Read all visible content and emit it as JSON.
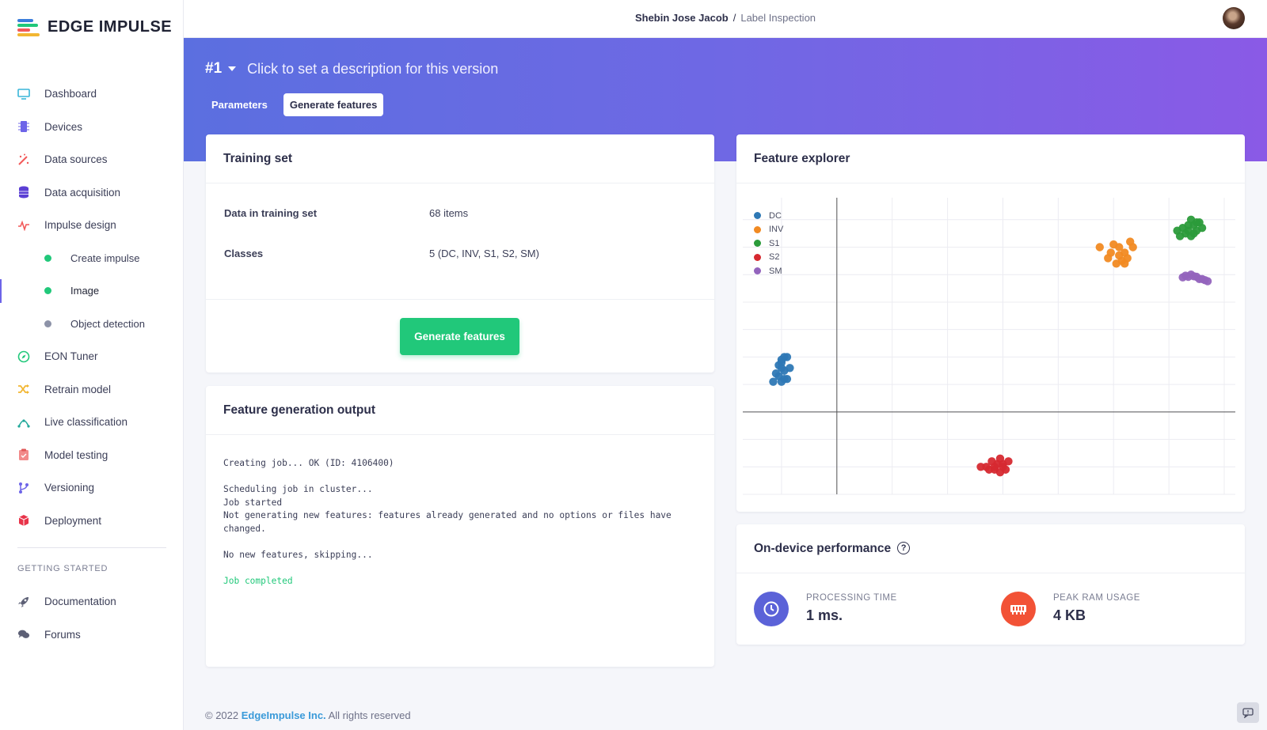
{
  "app": {
    "name": "EDGE IMPULSE"
  },
  "breadcrumb": {
    "user": "Shebin Jose Jacob",
    "separator": "/",
    "project": "Label Inspection"
  },
  "sidebar": {
    "items": [
      {
        "label": "Dashboard",
        "icon": "monitor-icon",
        "color": "#39b6d9"
      },
      {
        "label": "Devices",
        "icon": "chip-icon",
        "color": "#6d64e8"
      },
      {
        "label": "Data sources",
        "icon": "wand-icon",
        "color": "#f25a5a"
      },
      {
        "label": "Data acquisition",
        "icon": "database-icon",
        "color": "#5b3fd4"
      },
      {
        "label": "Impulse design",
        "icon": "pulse-icon",
        "color": "#f25a5a"
      }
    ],
    "sub_items": [
      {
        "label": "Create impulse",
        "dot": "#21c87a"
      },
      {
        "label": "Image",
        "dot": "#21c87a"
      },
      {
        "label": "Object detection",
        "dot": "#8d93a8"
      }
    ],
    "items2": [
      {
        "label": "EON Tuner",
        "icon": "compass-icon",
        "color": "#21c87a"
      },
      {
        "label": "Retrain model",
        "icon": "shuffle-icon",
        "color": "#f2b632"
      },
      {
        "label": "Live classification",
        "icon": "curve-icon",
        "color": "#21a89a"
      },
      {
        "label": "Model testing",
        "icon": "clipboard-icon",
        "color": "#f28a8a"
      },
      {
        "label": "Versioning",
        "icon": "branch-icon",
        "color": "#6d64e8"
      },
      {
        "label": "Deployment",
        "icon": "box-icon",
        "color": "#e8344a"
      }
    ],
    "section_label": "GETTING STARTED",
    "help_items": [
      {
        "label": "Documentation",
        "icon": "rocket-icon"
      },
      {
        "label": "Forums",
        "icon": "chat-icon"
      }
    ]
  },
  "version": {
    "number": "#1",
    "description": "Click to set a description for this version"
  },
  "tabs": [
    {
      "label": "Parameters"
    },
    {
      "label": "Generate features"
    }
  ],
  "training_set": {
    "title": "Training set",
    "rows": [
      {
        "label": "Data in training set",
        "value": "68 items"
      },
      {
        "label": "Classes",
        "value": "5 (DC, INV, S1, S2, SM)"
      }
    ],
    "button": "Generate features"
  },
  "feature_output": {
    "title": "Feature generation output",
    "log": "Creating job... OK (ID: 4106400)\n\nScheduling job in cluster...\nJob started\nNot generating new features: features already generated and no options or files have\nchanged.\n\nNo new features, skipping...\n\n",
    "status": "Job completed"
  },
  "feature_explorer": {
    "title": "Feature explorer"
  },
  "chart_data": {
    "type": "scatter",
    "title": "",
    "xlabel": "",
    "ylabel": "",
    "grid": true,
    "legend_position": "top-left",
    "xlim": [
      -1.7,
      7.2
    ],
    "ylim": [
      -1.5,
      3.9
    ],
    "series": [
      {
        "name": "DC",
        "color": "#2e78b5",
        "points": [
          [
            -1.0,
            0.95
          ],
          [
            -0.95,
            1.0
          ],
          [
            -0.9,
            1.0
          ],
          [
            -1.05,
            0.85
          ],
          [
            -1.0,
            0.8
          ],
          [
            -0.95,
            0.75
          ],
          [
            -1.1,
            0.7
          ],
          [
            -1.05,
            0.65
          ],
          [
            -0.95,
            0.6
          ],
          [
            -0.9,
            0.6
          ],
          [
            -1.0,
            0.55
          ],
          [
            -1.15,
            0.55
          ],
          [
            -0.85,
            0.8
          ],
          [
            -1.0,
            0.9
          ]
        ]
      },
      {
        "name": "INV",
        "color": "#f18a22",
        "points": [
          [
            5.1,
            3.0
          ],
          [
            5.2,
            2.9
          ],
          [
            5.0,
            3.05
          ],
          [
            5.3,
            3.1
          ],
          [
            5.25,
            2.8
          ],
          [
            5.15,
            2.75
          ],
          [
            5.05,
            2.7
          ],
          [
            4.95,
            2.9
          ],
          [
            5.2,
            2.7
          ],
          [
            5.35,
            3.0
          ],
          [
            4.75,
            3.0
          ],
          [
            4.9,
            2.8
          ],
          [
            5.1,
            2.85
          ]
        ]
      },
      {
        "name": "S1",
        "color": "#2b9b3a",
        "points": [
          [
            6.4,
            3.5
          ],
          [
            6.5,
            3.45
          ],
          [
            6.45,
            3.4
          ],
          [
            6.6,
            3.35
          ],
          [
            6.35,
            3.3
          ],
          [
            6.5,
            3.3
          ],
          [
            6.25,
            3.35
          ],
          [
            6.3,
            3.25
          ],
          [
            6.45,
            3.25
          ],
          [
            6.15,
            3.3
          ],
          [
            6.2,
            3.2
          ],
          [
            6.35,
            3.4
          ],
          [
            6.55,
            3.45
          ],
          [
            6.4,
            3.2
          ]
        ]
      },
      {
        "name": "S2",
        "color": "#d62930",
        "points": [
          [
            2.7,
            -1.0
          ],
          [
            2.8,
            -0.9
          ],
          [
            2.9,
            -0.95
          ],
          [
            2.85,
            -1.05
          ],
          [
            3.0,
            -0.95
          ],
          [
            3.05,
            -1.05
          ],
          [
            2.95,
            -1.1
          ],
          [
            2.75,
            -1.05
          ],
          [
            2.6,
            -1.0
          ],
          [
            3.1,
            -0.9
          ],
          [
            2.95,
            -0.85
          ],
          [
            2.85,
            -1.0
          ],
          [
            3.0,
            -1.0
          ]
        ]
      },
      {
        "name": "SM",
        "color": "#9364bd",
        "points": [
          [
            6.3,
            2.48
          ],
          [
            6.4,
            2.5
          ],
          [
            6.5,
            2.46
          ],
          [
            6.6,
            2.42
          ],
          [
            6.7,
            2.38
          ],
          [
            6.25,
            2.45
          ],
          [
            6.55,
            2.42
          ],
          [
            6.45,
            2.47
          ],
          [
            6.35,
            2.46
          ],
          [
            6.65,
            2.4
          ]
        ]
      }
    ]
  },
  "performance": {
    "title": "On-device performance",
    "processing": {
      "label": "PROCESSING TIME",
      "value": "1 ms.",
      "color": "#5b62d8"
    },
    "ram": {
      "label": "PEAK RAM USAGE",
      "value": "4 KB",
      "color": "#f25236"
    }
  },
  "footer": {
    "copyright": "© 2022",
    "company": "EdgeImpulse Inc.",
    "rights": "All rights reserved"
  }
}
